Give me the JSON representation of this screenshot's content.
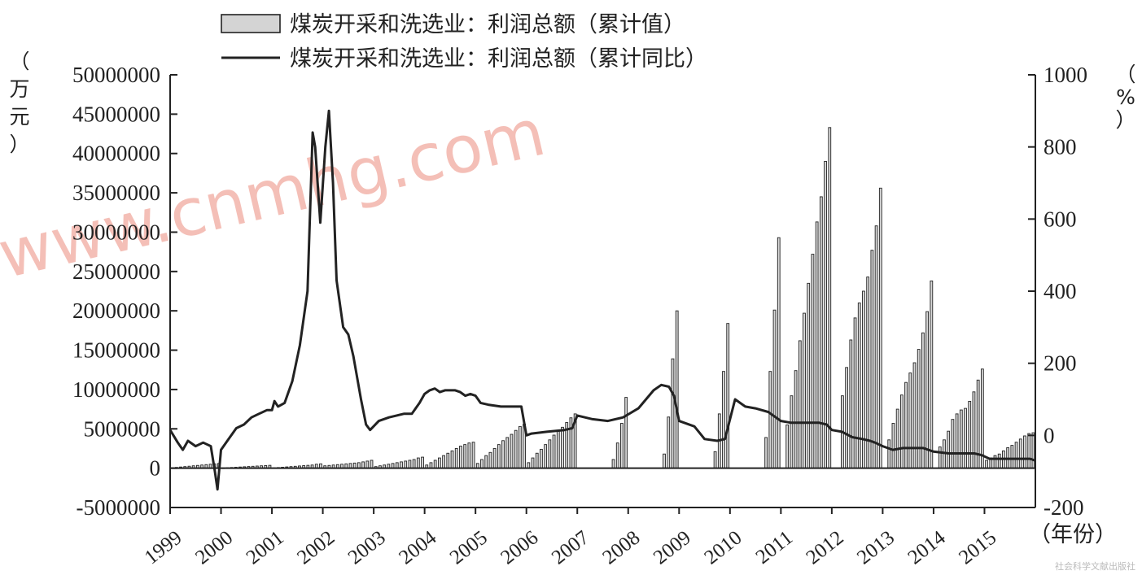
{
  "chart_data": {
    "type": "bar+line",
    "legend": [
      {
        "name": "煤炭开采和洗选业：利润总额（累计值）",
        "mark": "bar"
      },
      {
        "name": "煤炭开采和洗选业：利润总额（累计同比）",
        "mark": "line"
      }
    ],
    "ylabel_left": [
      "（",
      "万",
      "元",
      "）"
    ],
    "ylabel_right": [
      "（",
      "%",
      "）"
    ],
    "xlabel": "（年份）",
    "ylim_left": [
      -5000000,
      50000000
    ],
    "ylim_right": [
      -200,
      1000
    ],
    "yticks_left": [
      "50000000",
      "45000000",
      "40000000",
      "35000000",
      "30000000",
      "25000000",
      "20000000",
      "15000000",
      "10000000",
      "5000000",
      "0",
      "-5000000"
    ],
    "yticks_right": [
      "1000",
      "800",
      "600",
      "400",
      "200",
      "0",
      "-200"
    ],
    "xticks": [
      "1999",
      "2000",
      "2001",
      "2002",
      "2003",
      "2004",
      "2005",
      "2006",
      "2007",
      "2008",
      "2009",
      "2010",
      "2011",
      "2012",
      "2013",
      "2014",
      "2015"
    ],
    "watermark": "www.cnmhg.com",
    "footer": "社会科学文献出版社",
    "bar_series": {
      "name": "煤炭开采和洗选业：利润总额（累计值）",
      "years": [
        {
          "year": 1999,
          "values": [
            50000,
            100000,
            150000,
            200000,
            250000,
            300000,
            350000,
            400000,
            450000,
            500000,
            550000,
            600000
          ]
        },
        {
          "year": 2000,
          "values": [
            30000,
            60000,
            90000,
            120000,
            150000,
            180000,
            210000,
            240000,
            270000,
            300000,
            330000,
            360000
          ]
        },
        {
          "year": 2001,
          "values": [
            40000,
            80000,
            120000,
            160000,
            200000,
            240000,
            280000,
            320000,
            360000,
            400000,
            500000,
            550000
          ]
        },
        {
          "year": 2002,
          "values": [
            300000,
            350000,
            400000,
            450000,
            500000,
            550000,
            600000,
            650000,
            700000,
            800000,
            900000,
            1000000
          ]
        },
        {
          "year": 2003,
          "values": [
            200000,
            300000,
            400000,
            500000,
            600000,
            700000,
            800000,
            900000,
            1000000,
            1100000,
            1300000,
            1400000
          ]
        },
        {
          "year": 2004,
          "values": [
            400000,
            700000,
            1000000,
            1300000,
            1600000,
            1900000,
            2200000,
            2500000,
            2800000,
            3000000,
            3200000,
            3300000
          ]
        },
        {
          "year": 2005,
          "values": [
            600000,
            1100000,
            1600000,
            2000000,
            2500000,
            3000000,
            3500000,
            3900000,
            4300000,
            4800000,
            5300000,
            5600000
          ]
        },
        {
          "year": 2006,
          "values": [
            700000,
            1300000,
            1900000,
            2400000,
            3000000,
            3600000,
            4200000,
            4700000,
            5200000,
            5800000,
            6400000,
            6900000
          ]
        },
        {
          "year": 2007,
          "values": [
            1100000,
            3200000,
            5700000,
            9000000
          ]
        },
        {
          "year": 2008,
          "values": [
            1800000,
            6500000,
            13900000,
            20000000
          ]
        },
        {
          "year": 2009,
          "values": [
            2100000,
            6900000,
            12300000,
            18400000
          ]
        },
        {
          "year": 2010,
          "values": [
            3900000,
            12300000,
            20100000,
            29300000
          ]
        },
        {
          "year": 2011,
          "values": [
            5500000,
            9200000,
            12400000,
            16200000,
            19700000,
            23500000,
            27200000,
            31300000,
            34500000,
            39000000,
            43300000
          ]
        },
        {
          "year": 2012,
          "values": [
            9200000,
            12800000,
            16300000,
            19100000,
            21000000,
            22500000,
            24300000,
            27700000,
            30800000,
            35600000
          ]
        },
        {
          "year": 2013,
          "values": [
            3600000,
            5700000,
            7500000,
            9300000,
            10900000,
            12100000,
            13400000,
            15100000,
            17200000,
            19900000,
            23800000
          ]
        },
        {
          "year": 2014,
          "values": [
            2700000,
            3600000,
            4700000,
            6200000,
            6900000,
            7400000,
            7600000,
            8500000,
            9700000,
            11200000,
            12600000
          ]
        },
        {
          "year": 2015,
          "values": [
            1000000,
            1300000,
            1600000,
            1800000,
            2200000,
            2600000,
            2900000,
            3300000,
            3700000,
            4100000,
            4400000,
            4500000
          ]
        }
      ]
    },
    "line_series": {
      "name": "煤炭开采和洗选业：利润总额（累计同比）",
      "points": [
        [
          1999.0,
          15
        ],
        [
          1999.15,
          -20
        ],
        [
          1999.25,
          -40
        ],
        [
          1999.35,
          -15
        ],
        [
          1999.5,
          -30
        ],
        [
          1999.65,
          -20
        ],
        [
          1999.8,
          -30
        ],
        [
          1999.88,
          -100
        ],
        [
          1999.93,
          -150
        ],
        [
          2000.0,
          -40
        ],
        [
          2000.15,
          -10
        ],
        [
          2000.3,
          20
        ],
        [
          2000.45,
          30
        ],
        [
          2000.6,
          50
        ],
        [
          2000.75,
          60
        ],
        [
          2000.9,
          70
        ],
        [
          2001.0,
          70
        ],
        [
          2001.05,
          95
        ],
        [
          2001.12,
          80
        ],
        [
          2001.25,
          90
        ],
        [
          2001.4,
          150
        ],
        [
          2001.55,
          250
        ],
        [
          2001.7,
          400
        ],
        [
          2001.8,
          840
        ],
        [
          2001.85,
          800
        ],
        [
          2001.95,
          590
        ],
        [
          2002.05,
          800
        ],
        [
          2002.12,
          900
        ],
        [
          2002.2,
          700
        ],
        [
          2002.27,
          430
        ],
        [
          2002.4,
          300
        ],
        [
          2002.5,
          280
        ],
        [
          2002.6,
          220
        ],
        [
          2002.75,
          100
        ],
        [
          2002.85,
          30
        ],
        [
          2002.93,
          15
        ],
        [
          2003.1,
          40
        ],
        [
          2003.3,
          50
        ],
        [
          2003.45,
          55
        ],
        [
          2003.6,
          60
        ],
        [
          2003.75,
          60
        ],
        [
          2003.9,
          90
        ],
        [
          2004.0,
          115
        ],
        [
          2004.1,
          125
        ],
        [
          2004.2,
          130
        ],
        [
          2004.3,
          120
        ],
        [
          2004.4,
          125
        ],
        [
          2004.6,
          125
        ],
        [
          2004.7,
          120
        ],
        [
          2004.8,
          110
        ],
        [
          2004.9,
          115
        ],
        [
          2005.0,
          110
        ],
        [
          2005.1,
          90
        ],
        [
          2005.25,
          85
        ],
        [
          2005.5,
          80
        ],
        [
          2005.75,
          80
        ],
        [
          2005.9,
          80
        ],
        [
          2006.0,
          0
        ],
        [
          2006.1,
          5
        ],
        [
          2006.4,
          10
        ],
        [
          2006.75,
          15
        ],
        [
          2006.9,
          20
        ],
        [
          2007.0,
          55
        ],
        [
          2007.3,
          45
        ],
        [
          2007.6,
          40
        ],
        [
          2007.9,
          50
        ],
        [
          2008.2,
          75
        ],
        [
          2008.5,
          125
        ],
        [
          2008.65,
          140
        ],
        [
          2008.8,
          135
        ],
        [
          2008.9,
          110
        ],
        [
          2009.0,
          40
        ],
        [
          2009.3,
          25
        ],
        [
          2009.5,
          -10
        ],
        [
          2009.75,
          -15
        ],
        [
          2009.9,
          -10
        ],
        [
          2010.1,
          100
        ],
        [
          2010.3,
          80
        ],
        [
          2010.5,
          75
        ],
        [
          2010.75,
          65
        ],
        [
          2011.0,
          40
        ],
        [
          2011.2,
          35
        ],
        [
          2011.5,
          35
        ],
        [
          2011.75,
          35
        ],
        [
          2011.9,
          30
        ],
        [
          2012.0,
          15
        ],
        [
          2012.2,
          10
        ],
        [
          2012.4,
          -5
        ],
        [
          2012.6,
          -10
        ],
        [
          2012.75,
          -15
        ],
        [
          2012.85,
          -20
        ],
        [
          2013.0,
          -30
        ],
        [
          2013.2,
          -40
        ],
        [
          2013.4,
          -35
        ],
        [
          2013.6,
          -35
        ],
        [
          2013.8,
          -35
        ],
        [
          2014.0,
          -45
        ],
        [
          2014.3,
          -50
        ],
        [
          2014.6,
          -50
        ],
        [
          2014.8,
          -50
        ],
        [
          2014.95,
          -55
        ],
        [
          2015.1,
          -65
        ],
        [
          2015.3,
          -65
        ],
        [
          2015.6,
          -65
        ],
        [
          2015.9,
          -65
        ],
        [
          2016.0,
          -70
        ]
      ]
    }
  }
}
